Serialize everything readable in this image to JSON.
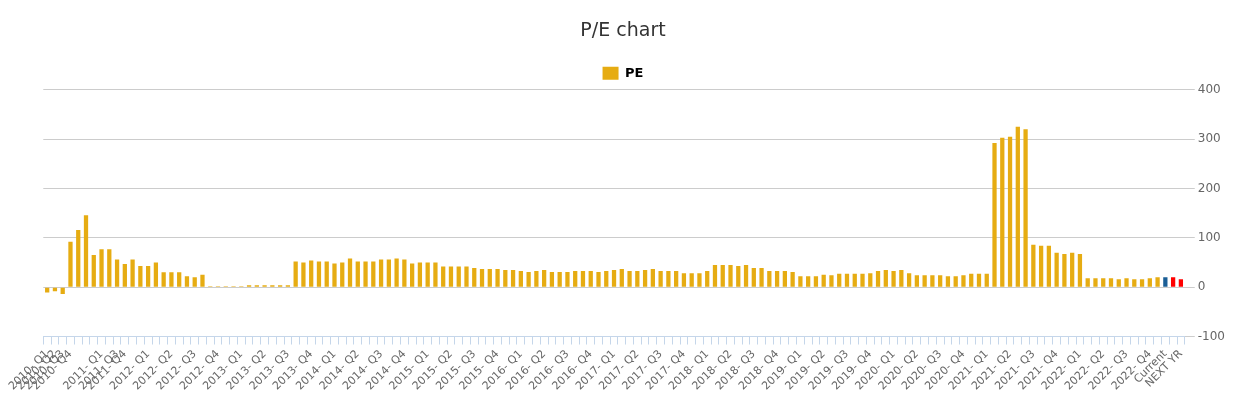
{
  "chart_data": {
    "type": "bar",
    "title": "P/E chart",
    "categories": [
      "2010- Q1",
      "2010- Q2",
      "2010- Q3",
      "2010- Q4",
      null,
      null,
      null,
      "2011- Q1",
      null,
      "2011- Q3",
      "2011- Q4",
      null,
      null,
      "2012- Q1",
      null,
      null,
      "2012- Q2",
      null,
      null,
      "2012- Q3",
      null,
      null,
      "2012- Q4",
      null,
      null,
      "2013- Q1",
      null,
      null,
      "2013- Q2",
      null,
      null,
      "2013- Q3",
      null,
      null,
      "2013- Q4",
      null,
      null,
      "2014- Q1",
      null,
      null,
      "2014- Q2",
      null,
      null,
      "2014- Q3",
      null,
      null,
      "2014- Q4",
      null,
      null,
      "2015- Q1",
      null,
      null,
      "2015- Q2",
      null,
      null,
      "2015- Q3",
      null,
      null,
      "2015- Q4",
      null,
      null,
      "2016- Q1",
      null,
      null,
      "2016- Q2",
      null,
      null,
      "2016- Q3",
      null,
      null,
      "2016- Q4",
      null,
      null,
      "2017- Q1",
      null,
      null,
      "2017- Q2",
      null,
      null,
      "2017- Q3",
      null,
      null,
      "2017- Q4",
      null,
      null,
      "2018- Q1",
      null,
      null,
      "2018- Q2",
      null,
      null,
      "2018- Q3",
      null,
      null,
      "2018- Q4",
      null,
      null,
      "2019- Q1",
      null,
      null,
      "2019- Q2",
      null,
      null,
      "2019- Q3",
      null,
      null,
      "2019- Q4",
      null,
      null,
      "2020- Q1",
      null,
      null,
      "2020- Q2",
      null,
      null,
      "2020- Q3",
      null,
      null,
      "2020- Q4",
      null,
      null,
      "2021- Q1",
      null,
      null,
      "2021- Q2",
      null,
      null,
      "2021- Q3",
      null,
      null,
      "2021- Q4",
      null,
      null,
      "2022- Q1",
      null,
      null,
      "2022- Q2",
      null,
      null,
      "2022- Q3",
      null,
      null,
      "2022- Q4",
      null,
      "Current",
      null,
      "NEXT YR"
    ],
    "series": [
      {
        "name": "PE",
        "color": "#e6ac12",
        "values": [
          -11,
          -8,
          -14,
          92,
          116,
          146,
          65,
          77,
          77,
          56,
          47,
          56,
          43,
          43,
          50,
          30,
          30,
          30,
          22,
          20,
          25,
          2,
          2,
          2,
          2,
          2,
          4,
          4,
          4,
          4,
          4,
          4,
          52,
          50,
          54,
          52,
          52,
          48,
          50,
          58,
          52,
          52,
          52,
          56,
          56,
          58,
          56,
          48,
          50,
          50,
          50,
          42,
          42,
          42,
          42,
          39,
          37,
          37,
          37,
          35,
          35,
          33,
          31,
          33,
          35,
          31,
          31,
          31,
          33,
          33,
          33,
          31,
          33,
          35,
          37,
          33,
          33,
          35,
          37,
          33,
          33,
          33,
          28,
          28,
          28,
          33,
          45,
          45,
          45,
          43,
          45,
          39,
          39,
          33,
          33,
          33,
          31,
          22,
          22,
          22,
          25,
          24,
          27,
          27,
          27,
          27,
          28,
          33,
          35,
          33,
          35,
          28,
          24,
          24,
          24,
          24,
          22,
          22,
          24,
          27,
          27,
          27,
          292,
          303,
          305,
          325,
          320,
          86,
          84,
          84,
          70,
          67,
          70,
          67,
          18,
          18,
          18,
          18,
          16,
          18,
          16,
          16,
          18,
          20,
          20,
          20,
          16
        ],
        "colors": [
          "#e6ac12",
          "#e6ac12",
          "#e6ac12",
          "#e6ac12",
          "#e6ac12",
          "#e6ac12",
          "#e6ac12",
          "#e6ac12",
          "#e6ac12",
          "#e6ac12",
          "#e6ac12",
          "#e6ac12",
          "#e6ac12",
          "#e6ac12",
          "#e6ac12",
          "#e6ac12",
          "#e6ac12",
          "#e6ac12",
          "#e6ac12",
          "#e6ac12",
          "#e6ac12",
          "#e6ac12",
          "#e6ac12",
          "#e6ac12",
          "#e6ac12",
          "#e6ac12",
          "#e6ac12",
          "#e6ac12",
          "#e6ac12",
          "#e6ac12",
          "#e6ac12",
          "#e6ac12",
          "#e6ac12",
          "#e6ac12",
          "#e6ac12",
          "#e6ac12",
          "#e6ac12",
          "#e6ac12",
          "#e6ac12",
          "#e6ac12",
          "#e6ac12",
          "#e6ac12",
          "#e6ac12",
          "#e6ac12",
          "#e6ac12",
          "#e6ac12",
          "#e6ac12",
          "#e6ac12",
          "#e6ac12",
          "#e6ac12",
          "#e6ac12",
          "#e6ac12",
          "#e6ac12",
          "#e6ac12",
          "#e6ac12",
          "#e6ac12",
          "#e6ac12",
          "#e6ac12",
          "#e6ac12",
          "#e6ac12",
          "#e6ac12",
          "#e6ac12",
          "#e6ac12",
          "#e6ac12",
          "#e6ac12",
          "#e6ac12",
          "#e6ac12",
          "#e6ac12",
          "#e6ac12",
          "#e6ac12",
          "#e6ac12",
          "#e6ac12",
          "#e6ac12",
          "#e6ac12",
          "#e6ac12",
          "#e6ac12",
          "#e6ac12",
          "#e6ac12",
          "#e6ac12",
          "#e6ac12",
          "#e6ac12",
          "#e6ac12",
          "#e6ac12",
          "#e6ac12",
          "#e6ac12",
          "#e6ac12",
          "#e6ac12",
          "#e6ac12",
          "#e6ac12",
          "#e6ac12",
          "#e6ac12",
          "#e6ac12",
          "#e6ac12",
          "#e6ac12",
          "#e6ac12",
          "#e6ac12",
          "#e6ac12",
          "#e6ac12",
          "#e6ac12",
          "#e6ac12",
          "#e6ac12",
          "#e6ac12",
          "#e6ac12",
          "#e6ac12",
          "#e6ac12",
          "#e6ac12",
          "#e6ac12",
          "#e6ac12",
          "#e6ac12",
          "#e6ac12",
          "#e6ac12",
          "#e6ac12",
          "#e6ac12",
          "#e6ac12",
          "#e6ac12",
          "#e6ac12",
          "#e6ac12",
          "#e6ac12",
          "#e6ac12",
          "#e6ac12",
          "#e6ac12",
          "#e6ac12",
          "#e6ac12",
          "#e6ac12",
          "#e6ac12",
          "#e6ac12",
          "#e6ac12",
          "#e6ac12",
          "#e6ac12",
          "#e6ac12",
          "#e6ac12",
          "#e6ac12",
          "#e6ac12",
          "#e6ac12",
          "#e6ac12",
          "#e6ac12",
          "#e6ac12",
          "#e6ac12",
          "#e6ac12",
          "#e6ac12",
          "#e6ac12",
          "#e6ac12",
          "#e6ac12",
          "#e6ac12",
          "#1a5e96",
          "#ff0000",
          "#ff0000"
        ]
      }
    ],
    "ylim": [
      -100,
      400
    ],
    "yticks": [
      -100,
      0,
      100,
      200,
      300,
      400
    ],
    "grid": "y",
    "legend": "top"
  }
}
